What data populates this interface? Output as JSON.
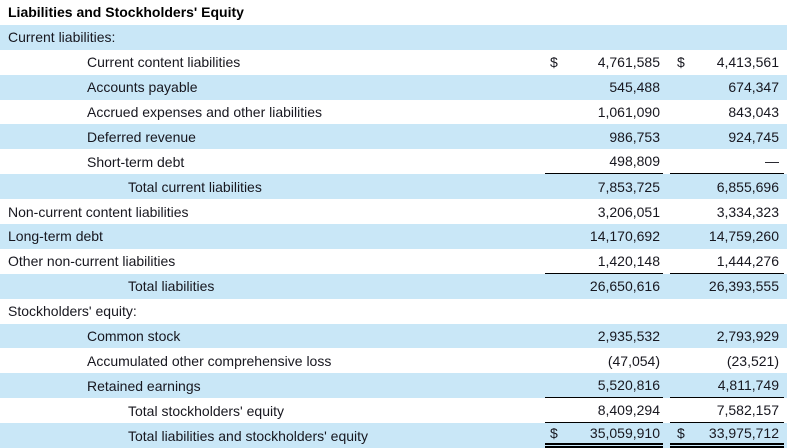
{
  "title": "Liabilities and Stockholders' Equity",
  "colors": {
    "stripe": "#c9e7f7",
    "text": "#17171f",
    "rule": "#000000"
  },
  "table": {
    "rows": [
      {
        "label": "Current liabilities:",
        "indent": 0,
        "shaded": true,
        "dollar1": "",
        "col1": "",
        "dollar2": "",
        "col2": "",
        "rule": "none"
      },
      {
        "label": "Current content liabilities",
        "indent": 1,
        "shaded": false,
        "dollar1": "$",
        "col1": "4,761,585",
        "dollar2": "$",
        "col2": "4,413,561",
        "rule": "none"
      },
      {
        "label": "Accounts payable",
        "indent": 1,
        "shaded": true,
        "dollar1": "",
        "col1": "545,488",
        "dollar2": "",
        "col2": "674,347",
        "rule": "none"
      },
      {
        "label": "Accrued expenses and other liabilities",
        "indent": 1,
        "shaded": false,
        "dollar1": "",
        "col1": "1,061,090",
        "dollar2": "",
        "col2": "843,043",
        "rule": "none"
      },
      {
        "label": "Deferred revenue",
        "indent": 1,
        "shaded": true,
        "dollar1": "",
        "col1": "986,753",
        "dollar2": "",
        "col2": "924,745",
        "rule": "none"
      },
      {
        "label": "Short-term debt",
        "indent": 1,
        "shaded": false,
        "dollar1": "",
        "col1": "498,809",
        "dollar2": "",
        "col2": "—",
        "rule": "single"
      },
      {
        "label": "Total current liabilities",
        "indent": 2,
        "shaded": true,
        "dollar1": "",
        "col1": "7,853,725",
        "dollar2": "",
        "col2": "6,855,696",
        "rule": "none"
      },
      {
        "label": "Non-current content liabilities",
        "indent": 0,
        "shaded": false,
        "dollar1": "",
        "col1": "3,206,051",
        "dollar2": "",
        "col2": "3,334,323",
        "rule": "none"
      },
      {
        "label": "Long-term debt",
        "indent": 0,
        "shaded": true,
        "dollar1": "",
        "col1": "14,170,692",
        "dollar2": "",
        "col2": "14,759,260",
        "rule": "none"
      },
      {
        "label": "Other non-current liabilities",
        "indent": 0,
        "shaded": false,
        "dollar1": "",
        "col1": "1,420,148",
        "dollar2": "",
        "col2": "1,444,276",
        "rule": "single"
      },
      {
        "label": "Total liabilities",
        "indent": 2,
        "shaded": true,
        "dollar1": "",
        "col1": "26,650,616",
        "dollar2": "",
        "col2": "26,393,555",
        "rule": "none"
      },
      {
        "label": "Stockholders' equity:",
        "indent": 0,
        "shaded": false,
        "dollar1": "",
        "col1": "",
        "dollar2": "",
        "col2": "",
        "rule": "none"
      },
      {
        "label": "Common stock",
        "indent": 1,
        "shaded": true,
        "dollar1": "",
        "col1": "2,935,532",
        "dollar2": "",
        "col2": "2,793,929",
        "rule": "none"
      },
      {
        "label": "Accumulated other comprehensive loss",
        "indent": 1,
        "shaded": false,
        "dollar1": "",
        "col1": "(47,054)",
        "dollar2": "",
        "col2": "(23,521)",
        "rule": "none"
      },
      {
        "label": "Retained earnings",
        "indent": 1,
        "shaded": true,
        "dollar1": "",
        "col1": "5,520,816",
        "dollar2": "",
        "col2": "4,811,749",
        "rule": "single"
      },
      {
        "label": "Total stockholders' equity",
        "indent": 2,
        "shaded": false,
        "dollar1": "",
        "col1": "8,409,294",
        "dollar2": "",
        "col2": "7,582,157",
        "rule": "single"
      },
      {
        "label": "Total liabilities and stockholders' equity",
        "indent": 2,
        "shaded": true,
        "dollar1": "$",
        "col1": "35,059,910",
        "dollar2": "$",
        "col2": "33,975,712",
        "rule": "double"
      }
    ]
  }
}
